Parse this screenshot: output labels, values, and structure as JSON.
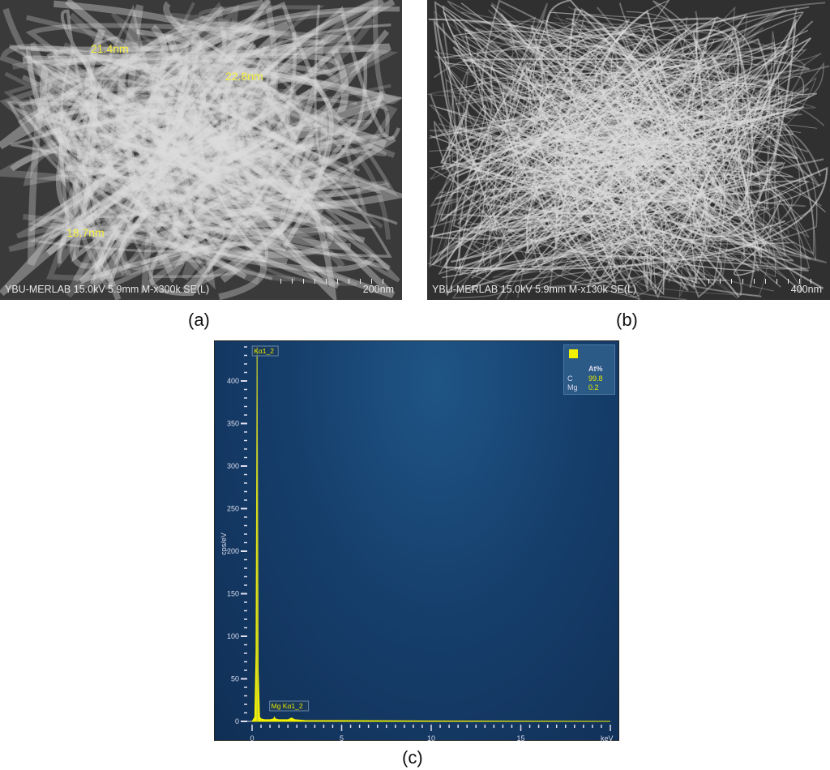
{
  "panels": [
    {
      "caption": "(a)",
      "info": "YBU-MERLAB 15.0kV 5.9mm M-x300k SE(L)",
      "scale": "200nm",
      "measurements": [
        "21.4nm",
        "22.8nm",
        "18.7nm"
      ]
    },
    {
      "caption": "(b)",
      "info": "YBU-MERLAB 15.0kV 5.9mm M-x130k SE(L)",
      "scale": "400nm"
    }
  ],
  "chart_data": {
    "type": "line",
    "caption": "(c)",
    "xlabel": "keV",
    "ylabel": "cps/eV",
    "xlim": [
      0,
      20
    ],
    "ylim": [
      0,
      440
    ],
    "xticks": [
      0,
      5,
      10,
      15
    ],
    "yticks": [
      0,
      50,
      100,
      150,
      200,
      250,
      300,
      350,
      400
    ],
    "series": [
      {
        "color": "#f2f000",
        "x": [
          0,
          0.15,
          0.22,
          0.28,
          0.34,
          0.42,
          0.5,
          0.7,
          1.0,
          1.2,
          1.25,
          1.3,
          1.5,
          2.0,
          2.2,
          2.4,
          3,
          5,
          10,
          20
        ],
        "y": [
          0,
          5,
          80,
          440,
          60,
          5,
          3,
          2,
          2,
          3,
          5,
          3,
          2,
          2,
          4,
          2,
          1,
          1,
          0.5,
          0
        ]
      }
    ],
    "annotations": [
      {
        "label": "Kα1_2",
        "x": 0.28
      },
      {
        "label": "Mg Kα1_2",
        "x": 1.25
      }
    ],
    "legend": {
      "header": "At%",
      "color": "#f2f000",
      "rows": [
        {
          "el": "C",
          "val": "99.8"
        },
        {
          "el": "Mg",
          "val": "0.2"
        }
      ]
    }
  }
}
